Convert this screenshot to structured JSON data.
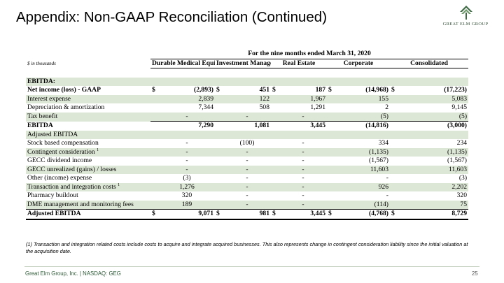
{
  "slide": {
    "title": "Appendix: Non-GAAP Reconciliation (Continued)",
    "logo_text": "GREAT ELM  GROUP",
    "footer_company": "Great Elm Group, Inc. | NASDAQ: GEG",
    "page_number": "25",
    "footnote": "(1) Transaction and integration related costs include costs to acquire and integrate acquired businesses.  This also represents change in contingent consideration liability since the initial valuation at the acquisition date."
  },
  "table": {
    "period": "For the nine months ended March 31, 2020",
    "units": "$ in thousands",
    "columns": [
      "Durable Medical Equipment",
      "Investment Management",
      "Real Estate",
      "Corporate",
      "Consolidated"
    ],
    "section_label": "EBITDA:",
    "rows": [
      {
        "label": "Net income (loss) - GAAP",
        "dollar": "$",
        "cells": [
          "(2,893)",
          "451",
          "187",
          "(14,968)",
          "(17,223)"
        ]
      },
      {
        "label": "Interest expense",
        "cells": [
          "2,839",
          "122",
          "1,967",
          "155",
          "5,083"
        ]
      },
      {
        "label": "Depreciation & amortization",
        "cells": [
          "7,344",
          "508",
          "1,291",
          "2",
          "9,145"
        ]
      },
      {
        "label": "Tax benefit",
        "cells": [
          "-",
          "-",
          "-",
          "(5)",
          "(5)"
        ]
      },
      {
        "label": "EBITDA",
        "cells": [
          "7,290",
          "1,081",
          "3,445",
          "(14,816)",
          "(3,000)"
        ]
      },
      {
        "label": "Adjusted EBITDA",
        "cells": [
          "",
          "",
          "",
          "",
          ""
        ]
      },
      {
        "label": "Stock based compensation",
        "cells": [
          "-",
          "(100)",
          "-",
          "334",
          "234"
        ]
      },
      {
        "label": "Contingent consideration",
        "sup": "1",
        "cells": [
          "-",
          "-",
          "-",
          "(1,135)",
          "(1,135)"
        ]
      },
      {
        "label": "GECC dividend income",
        "cells": [
          "-",
          "-",
          "-",
          "(1,567)",
          "(1,567)"
        ]
      },
      {
        "label": "GECC unrealized (gains) /   losses",
        "cells": [
          "-",
          "-",
          "-",
          "11,603",
          "11,603"
        ]
      },
      {
        "label": "Other (income) expense",
        "cells": [
          "(3)",
          "-",
          "-",
          "-",
          "(3)"
        ]
      },
      {
        "label": "Transaction and integration costs",
        "sup": "1",
        "cells": [
          "1,276",
          "-",
          "-",
          "926",
          "2,202"
        ]
      },
      {
        "label": "Pharmacy buildout",
        "cells": [
          "320",
          "-",
          "-",
          "-",
          "320"
        ]
      },
      {
        "label": "DME management and monitoring fees",
        "cells": [
          "189",
          "-",
          "-",
          "(114)",
          "75"
        ]
      },
      {
        "label": "Adjusted EBITDA",
        "dollar": "$",
        "cells": [
          "9,071",
          "981",
          "3,445",
          "(4,768)",
          "8,729"
        ]
      }
    ]
  }
}
